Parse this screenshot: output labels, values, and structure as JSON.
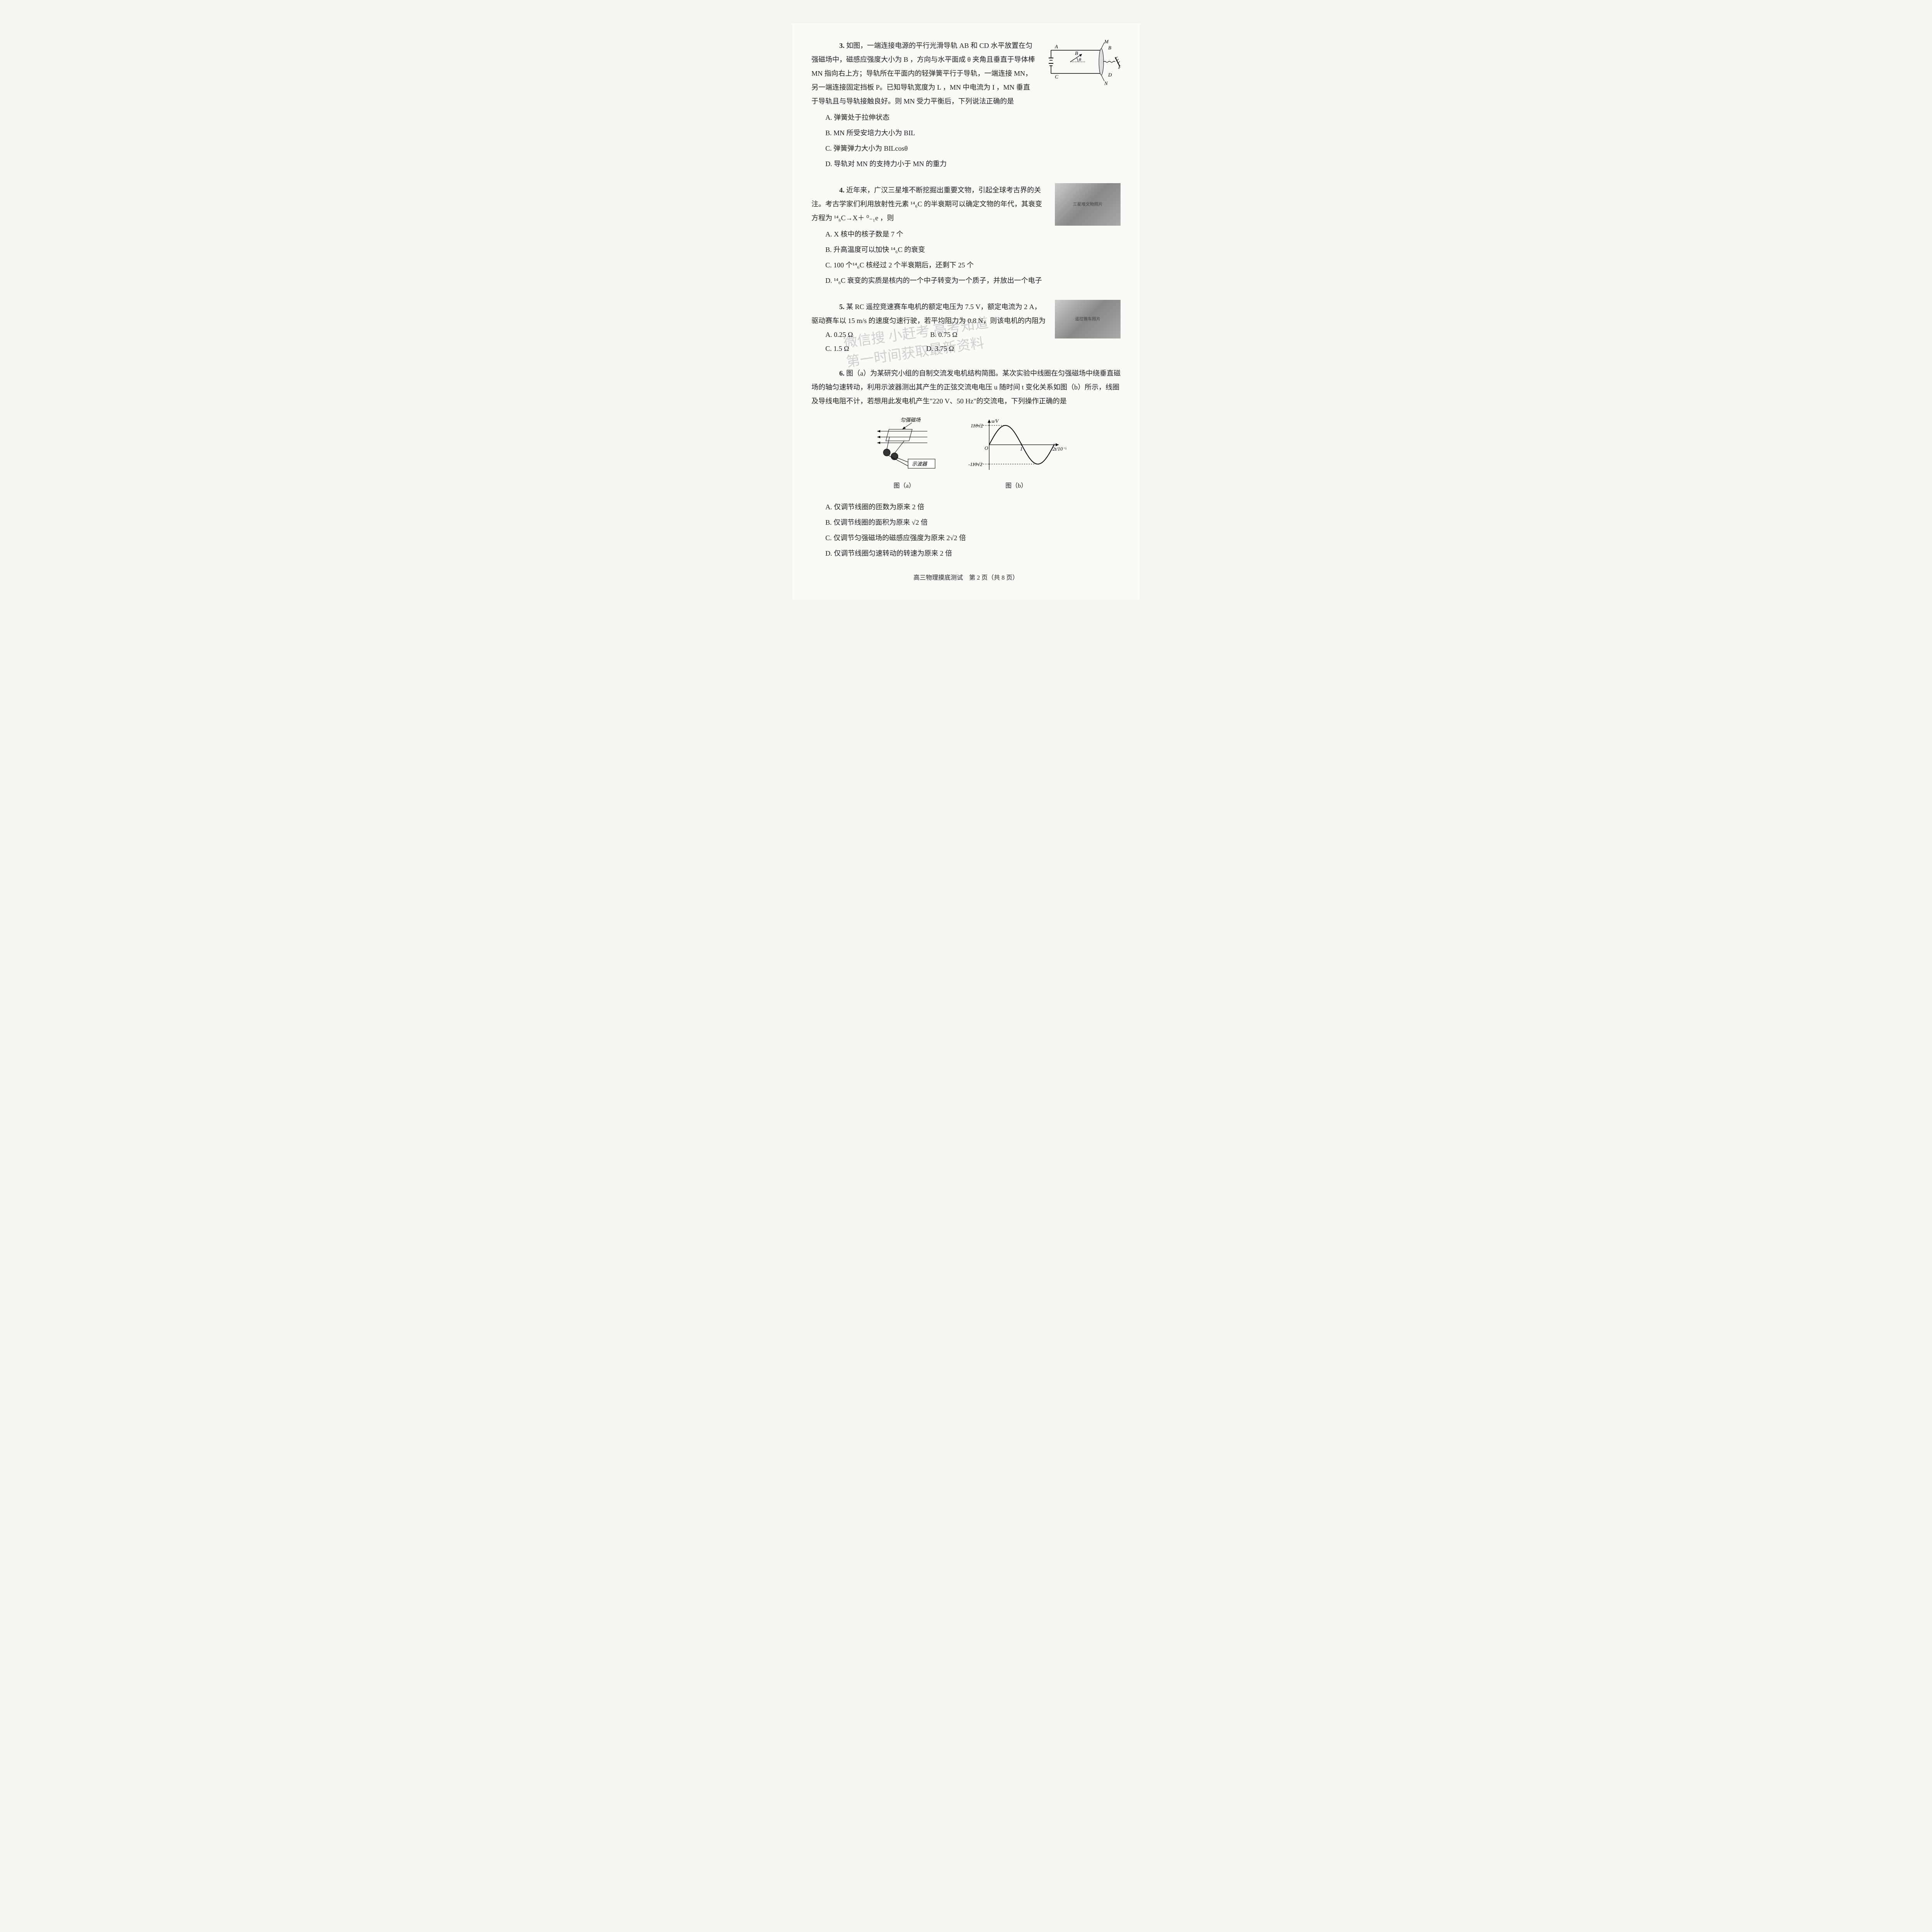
{
  "q3": {
    "num": "3.",
    "stem": "如图，一端连接电源的平行光滑导轨 AB 和 CD 水平放置在匀强磁场中，磁感应强度大小为 B ，方向与水平面成 θ 夹角且垂直于导体棒 MN 指向右上方；导轨所在平面内的轻弹簧平行于导轨，一端连接 MN，另一端连接固定挡板 P。已知导轨宽度为 L ，MN 中电流为 I ，MN 垂直于导轨且与导轨接触良好。则 MN 受力平衡后，下列说法正确的是",
    "A": "A. 弹簧处于拉伸状态",
    "B": "B. MN 所受安培力大小为 BIL",
    "C": "C. 弹簧弹力大小为 BILcosθ",
    "D": "D. 导轨对 MN 的支持力小于 MN 的重力",
    "fig": {
      "labels": {
        "A": "A",
        "B": "B",
        "C": "C",
        "D": "D",
        "M": "M",
        "N": "N",
        "P": "P",
        "Bvec": "B",
        "theta": "θ"
      }
    }
  },
  "q4": {
    "num": "4.",
    "stem": "近年来，广汉三星堆不断挖掘出重要文物，引起全球考古界的关注。考古学家们利用放射性元素 ¹⁴₆C 的半衰期可以确定文物的年代，其衰变方程为 ¹⁴₆C→X＋ ⁰₋₁e ，则",
    "A": "A. X 核中的核子数是 7 个",
    "B": "B. 升高温度可以加快 ¹⁴₆C 的衰变",
    "C": "C. 100 个¹⁴₆C 核经过 2 个半衰期后，还剩下 25 个",
    "D": "D. ¹⁴₆C 衰变的实质是核内的一个中子转变为一个质子，并放出一个电子",
    "fig_alt": "三星堆文物照片"
  },
  "q5": {
    "num": "5.",
    "stem": "某 RC 遥控竞速赛车电机的额定电压为 7.5 V，额定电流为 2 A，驱动赛车以 15 m/s 的速度匀速行驶，若平均阻力为 0.8 N，则该电机的内阻为",
    "A": "A. 0.25 Ω",
    "B": "B. 0.75 Ω",
    "C": "C. 1.5 Ω",
    "D": "D. 3.75 Ω",
    "fig_alt": "遥控赛车照片"
  },
  "q6": {
    "num": "6.",
    "stem": "图（a）为某研究小组的自制交流发电机结构简图。某次实验中线圈在匀强磁场中绕垂直磁场的轴匀速转动，利用示波器测出其产生的正弦交流电电压 u 随时间 t 变化关系如图（b）所示，线圈及导线电阻不计，若想用此发电机产生\"220 V、50 Hz\"的交流电，下列操作正确的是",
    "A": "A. 仅调节线圈的匝数为原来 2 倍",
    "B": "B. 仅调节线圈的面积为原来 √2 倍",
    "C": "C. 仅调节匀强磁场的磁感应强度为原来 2√2 倍",
    "D": "D. 仅调节线圈匀速转动的转速为原来 2 倍",
    "figA": {
      "caption": "图（a）",
      "label_field": "匀强磁场",
      "label_scope": "示波器"
    },
    "figB": {
      "caption": "图（b）",
      "ylabel": "u/V",
      "xlabel": "t/10⁻²s",
      "ymax": "110√2",
      "ymin": "-110√2",
      "xticks": [
        "1",
        "2"
      ],
      "amplitude": 50,
      "period": 2,
      "curve_color": "#000000",
      "axis_color": "#000000",
      "origin_label": "O"
    }
  },
  "watermark": {
    "line1": "微信搜 小赶考 高考知道",
    "line2": "第一时间获取最新资料"
  },
  "footer": "高三物理摸底测试　第 2 页（共 8 页）"
}
